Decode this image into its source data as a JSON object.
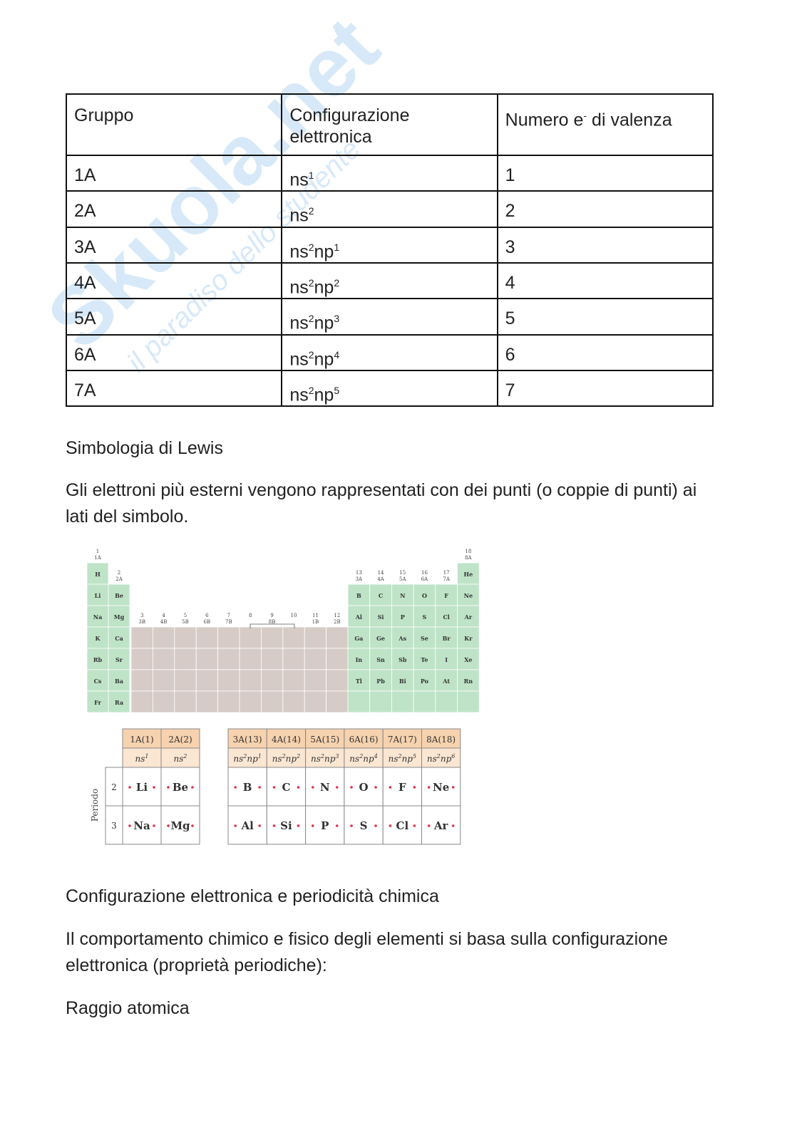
{
  "watermark": {
    "brand": "Skuola.net",
    "tagline": "il paradiso dello studente"
  },
  "table": {
    "header": [
      "Gruppo",
      "Configurazione elettronica",
      [
        "Numero e",
        "-",
        " di valenza"
      ]
    ],
    "rows": [
      {
        "group": "1A",
        "config": [
          [
            "ns",
            "1"
          ]
        ],
        "valence": "1"
      },
      {
        "group": "2A",
        "config": [
          [
            "ns",
            "2"
          ]
        ],
        "valence": "2"
      },
      {
        "group": "3A",
        "config": [
          [
            "ns",
            "2"
          ],
          [
            "np",
            "1"
          ]
        ],
        "valence": "3"
      },
      {
        "group": "4A",
        "config": [
          [
            "ns",
            "2"
          ],
          [
            "np",
            "2"
          ]
        ],
        "valence": "4"
      },
      {
        "group": "5A",
        "config": [
          [
            "ns",
            "2"
          ],
          [
            "np",
            "3"
          ]
        ],
        "valence": "5"
      },
      {
        "group": "6A",
        "config": [
          [
            "ns",
            "2"
          ],
          [
            "np",
            "4"
          ]
        ],
        "valence": "6"
      },
      {
        "group": "7A",
        "config": [
          [
            "ns",
            "2"
          ],
          [
            "np",
            "5"
          ]
        ],
        "valence": "7"
      }
    ]
  },
  "paragraphs": [
    "Simbologia di Lewis",
    "Gli elettroni più esterni vengono rappresentati con dei punti (o coppie di punti) ai lati del simbolo.",
    "Configurazione elettronica e periodicità chimica",
    "Il comportamento chimico e fisico degli elementi si basa sulla configurazione elettronica (proprietà periodiche):",
    "Raggio atomica"
  ],
  "periodic_figure": {
    "group_numbers": [
      "1",
      "2",
      "3",
      "4",
      "5",
      "6",
      "7",
      "8",
      "9",
      "10",
      "11",
      "12",
      "13",
      "14",
      "15",
      "16",
      "17",
      "18"
    ],
    "group_labels": [
      "1A",
      "2A",
      "3B",
      "4B",
      "5B",
      "6B",
      "7B",
      "8B",
      null,
      null,
      "1B",
      "2B",
      "3A",
      "4A",
      "5A",
      "6A",
      "7A",
      "8A"
    ],
    "rows": [
      [
        "H",
        null,
        null,
        null,
        null,
        null,
        null,
        null,
        null,
        null,
        null,
        null,
        null,
        null,
        null,
        null,
        null,
        "He"
      ],
      [
        "Li",
        "Be",
        null,
        null,
        null,
        null,
        null,
        null,
        null,
        null,
        null,
        null,
        "B",
        "C",
        "N",
        "O",
        "F",
        "Ne"
      ],
      [
        "Na",
        "Mg",
        null,
        null,
        null,
        null,
        null,
        null,
        null,
        null,
        null,
        null,
        "Al",
        "Si",
        "P",
        "S",
        "Cl",
        "Ar"
      ],
      [
        "K",
        "Ca",
        null,
        null,
        null,
        null,
        null,
        null,
        null,
        null,
        null,
        null,
        "Ga",
        "Ge",
        "As",
        "Se",
        "Br",
        "Kr"
      ],
      [
        "Rb",
        "Sr",
        null,
        null,
        null,
        null,
        null,
        null,
        null,
        null,
        null,
        null,
        "In",
        "Sn",
        "Sb",
        "Te",
        "I",
        "Xe"
      ],
      [
        "Cs",
        "Ba",
        null,
        null,
        null,
        null,
        null,
        null,
        null,
        null,
        null,
        null,
        "Tl",
        "Pb",
        "Bi",
        "Po",
        "At",
        "Rn"
      ],
      [
        "Fr",
        "Ra",
        null,
        null,
        null,
        null,
        null,
        null,
        null,
        null,
        null,
        null,
        null,
        null,
        null,
        null,
        null,
        null
      ]
    ]
  },
  "lewis_figure": {
    "axis_label": "Periodo",
    "groups": [
      "1A(1)",
      "2A(2)",
      "3A(13)",
      "4A(14)",
      "5A(15)",
      "6A(16)",
      "7A(17)",
      "8A(18)"
    ],
    "configs": [
      [
        [
          "ns",
          "1"
        ]
      ],
      [
        [
          "ns",
          "2"
        ]
      ],
      [
        [
          "ns",
          "2"
        ],
        [
          "np",
          "1"
        ]
      ],
      [
        [
          "ns",
          "2"
        ],
        [
          "np",
          "2"
        ]
      ],
      [
        [
          "ns",
          "2"
        ],
        [
          "np",
          "3"
        ]
      ],
      [
        [
          "ns",
          "2"
        ],
        [
          "np",
          "4"
        ]
      ],
      [
        [
          "ns",
          "2"
        ],
        [
          "np",
          "5"
        ]
      ],
      [
        [
          "ns",
          "2"
        ],
        [
          "np",
          "6"
        ]
      ]
    ],
    "periods": [
      {
        "period": "2",
        "elements": [
          "Li",
          "Be",
          "B",
          "C",
          "N",
          "O",
          "F",
          "Ne"
        ]
      },
      {
        "period": "3",
        "elements": [
          "Na",
          "Mg",
          "Al",
          "Si",
          "P",
          "S",
          "Cl",
          "Ar"
        ]
      }
    ]
  }
}
